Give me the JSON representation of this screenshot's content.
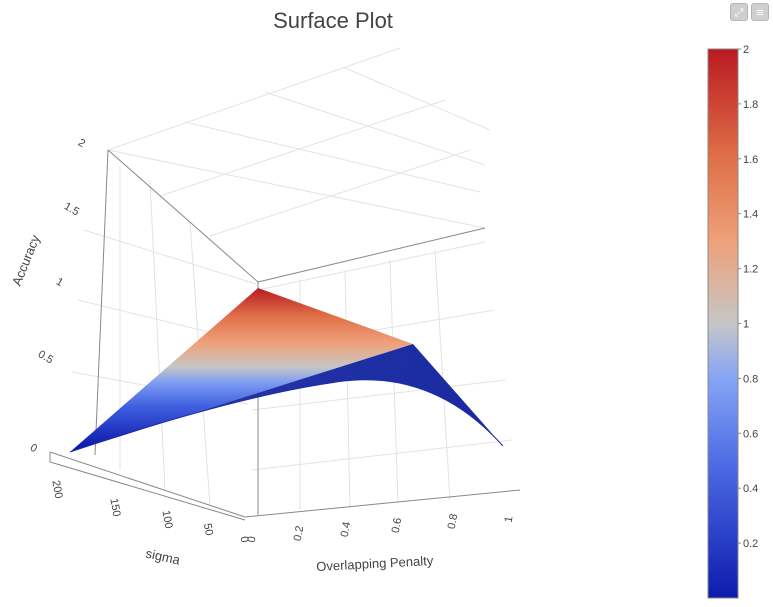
{
  "chart_data": {
    "type": "surface",
    "title": "Surface Plot",
    "x_axis": {
      "label": "Overlapping Penalty",
      "range": [
        0,
        1
      ],
      "ticks": [
        "0",
        "0.2",
        "0.4",
        "0.6",
        "0.8",
        "1"
      ]
    },
    "y_axis": {
      "label": "sigma",
      "range": [
        0,
        200
      ],
      "ticks": [
        "0",
        "50",
        "100",
        "150",
        "200"
      ]
    },
    "z_axis": {
      "label": "Accuracy",
      "range": [
        0,
        2
      ],
      "ticks": [
        "0",
        "0.5",
        "1",
        "1.5",
        "2"
      ]
    },
    "surface_corners": [
      {
        "overlapping_penalty": 0,
        "sigma": 0,
        "accuracy": 1.9
      },
      {
        "overlapping_penalty": 1,
        "sigma": 0,
        "accuracy": 0.78
      },
      {
        "overlapping_penalty": 1,
        "sigma": 200,
        "accuracy": 0.0
      },
      {
        "overlapping_penalty": 0,
        "sigma": 200,
        "accuracy": 0.0
      }
    ],
    "colorbar": {
      "range": [
        0,
        2
      ],
      "ticks": [
        "0.2",
        "0.4",
        "0.6",
        "0.8",
        "1",
        "1.2",
        "1.4",
        "1.6",
        "1.8",
        "2"
      ],
      "colorscale": [
        "#0d1bad",
        "#4e6ee6",
        "#86a5f6",
        "#c6c6c6",
        "#efa17a",
        "#e07049",
        "#ba1a22"
      ]
    },
    "grid": true
  },
  "toolbar": {
    "expand_icon": "expand-icon",
    "menu_icon": "hamburger-menu-icon",
    "expand_glyph": "⤢",
    "menu_glyph": "≡"
  }
}
